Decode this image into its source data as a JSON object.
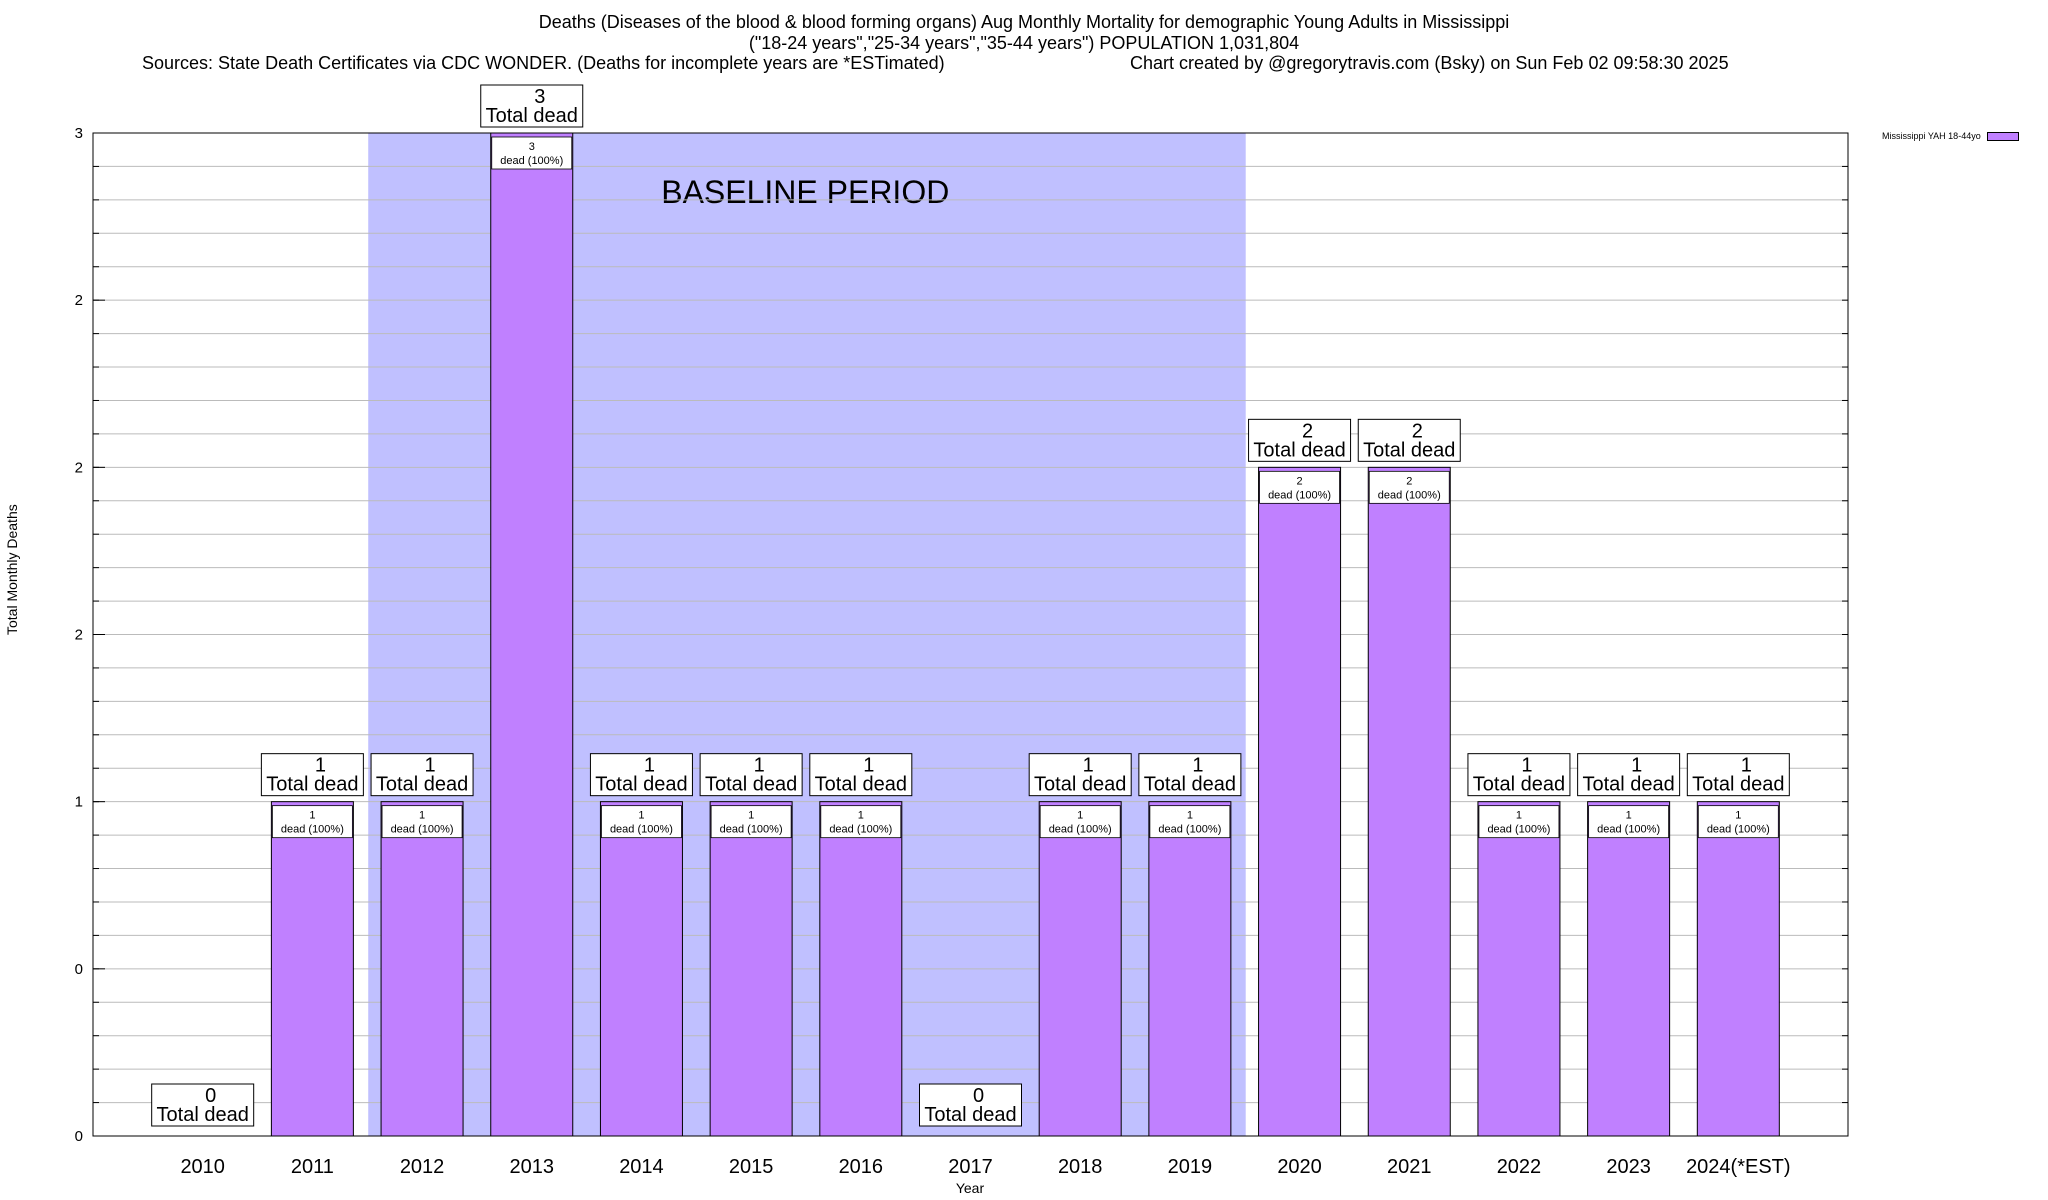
{
  "header": {
    "title_line1": "Deaths (Diseases of the blood & blood forming organs) Aug Monthly Mortality for demographic Young Adults in Mississippi",
    "title_line2": "(\"18-24 years\",\"25-34 years\",\"35-44 years\") POPULATION 1,031,804",
    "sources": "Sources: State Death Certificates via CDC WONDER. (Deaths for incomplete years are *ESTimated)",
    "credit": "Chart created by @gregorytravis.com (Bsky) on Sun Feb 02 09:58:30 2025"
  },
  "colors": {
    "bar": "#c080ff",
    "baseline_band": "#c0c0ff",
    "grid": "#bbbbbb"
  },
  "chart_data": {
    "type": "bar",
    "xlabel": "Year",
    "ylabel": "Total Monthly Deaths",
    "ylim": [
      0,
      3
    ],
    "ytick_labels": [
      "0",
      "0",
      "1",
      "2",
      "2",
      "2",
      "3"
    ],
    "grid": true,
    "legend_position": "top-right",
    "legend": [
      "Mississippi YAH 18-44yo"
    ],
    "categories": [
      "2010",
      "2011",
      "2012",
      "2013",
      "2014",
      "2015",
      "2016",
      "2017",
      "2018",
      "2019",
      "2020",
      "2021",
      "2022",
      "2023",
      "2024(*EST)"
    ],
    "series": [
      {
        "name": "Mississippi YAH 18-44yo",
        "values": [
          0,
          1,
          1,
          3,
          1,
          1,
          1,
          0,
          1,
          1,
          2,
          2,
          1,
          1,
          1
        ]
      }
    ],
    "total_labels": [
      "0",
      "1",
      "1",
      "3",
      "1",
      "1",
      "1",
      "0",
      "1",
      "1",
      "2",
      "2",
      "1",
      "1",
      "1"
    ],
    "total_suffix": "Total dead",
    "inner_labels": [
      "",
      "1",
      "1",
      "3",
      "1",
      "1",
      "1",
      "",
      "1",
      "1",
      "2",
      "2",
      "1",
      "1",
      "1"
    ],
    "inner_suffix": "dead (100%)",
    "baseline": {
      "label": "BASELINE PERIOD",
      "start": "2012",
      "end": "2019"
    }
  }
}
